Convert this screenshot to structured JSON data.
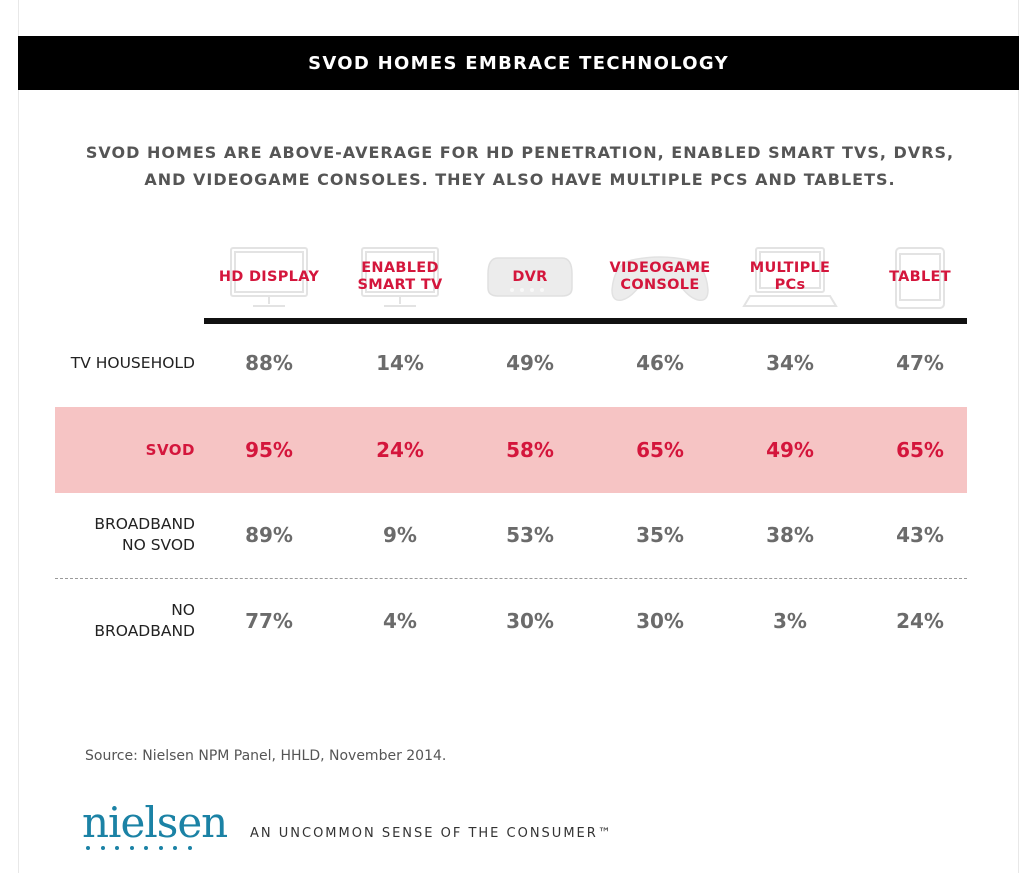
{
  "header": {
    "title": "SVOD HOMES EMBRACE TECHNOLOGY"
  },
  "subtitle": {
    "line1": "SVOD HOMES ARE ABOVE-AVERAGE FOR HD PENETRATION, ENABLED SMART TVS, DVRS,",
    "line2": "AND VIDEOGAME CONSOLES. THEY ALSO HAVE MULTIPLE PCS AND TABLETS."
  },
  "columns": [
    {
      "label": "HD DISPLAY",
      "icon": "hd-display-icon"
    },
    {
      "label": "ENABLED\nSMART TV",
      "icon": "smart-tv-icon"
    },
    {
      "label": "DVR",
      "icon": "dvr-icon"
    },
    {
      "label": "VIDEOGAME\nCONSOLE",
      "icon": "game-controller-icon"
    },
    {
      "label": "MULTIPLE\nPCs",
      "icon": "laptop-icon"
    },
    {
      "label": "TABLET",
      "icon": "tablet-icon"
    }
  ],
  "rows": [
    {
      "label": "TV HOUSEHOLD",
      "highlight": false,
      "values": [
        "88%",
        "14%",
        "49%",
        "46%",
        "34%",
        "47%"
      ]
    },
    {
      "label": "SVOD",
      "highlight": true,
      "values": [
        "95%",
        "24%",
        "58%",
        "65%",
        "49%",
        "65%"
      ]
    },
    {
      "label": "BROADBAND\nNO SVOD",
      "highlight": false,
      "values": [
        "89%",
        "9%",
        "53%",
        "35%",
        "38%",
        "43%"
      ]
    },
    {
      "label": "NO\nBROADBAND",
      "highlight": false,
      "values": [
        "77%",
        "4%",
        "30%",
        "30%",
        "3%",
        "24%"
      ]
    }
  ],
  "chart_data": {
    "type": "table",
    "title": "SVOD HOMES EMBRACE TECHNOLOGY",
    "columns": [
      "HD DISPLAY",
      "ENABLED SMART TV",
      "DVR",
      "VIDEOGAME CONSOLE",
      "MULTIPLE PCs",
      "TABLET"
    ],
    "rows": [
      "TV HOUSEHOLD",
      "SVOD",
      "BROADBAND NO SVOD",
      "NO BROADBAND"
    ],
    "series": [
      {
        "name": "TV HOUSEHOLD",
        "values": [
          88,
          14,
          49,
          46,
          34,
          47
        ]
      },
      {
        "name": "SVOD",
        "values": [
          95,
          24,
          58,
          65,
          49,
          65
        ]
      },
      {
        "name": "BROADBAND NO SVOD",
        "values": [
          89,
          9,
          53,
          35,
          38,
          43
        ]
      },
      {
        "name": "NO BROADBAND",
        "values": [
          77,
          4,
          30,
          30,
          3,
          24
        ]
      }
    ],
    "unit": "%"
  },
  "colors": {
    "accent": "#d4163c",
    "highlight_row": "#f6c4c4",
    "title_bar": "#000000",
    "value_gray": "#6b6b6b",
    "brand_blue": "#1b82a5"
  },
  "footer": {
    "source": "Source: Nielsen NPM Panel, HHLD, November 2014.",
    "logo": "nielsen",
    "tagline": "AN UNCOMMON SENSE OF THE CONSUMER™"
  }
}
